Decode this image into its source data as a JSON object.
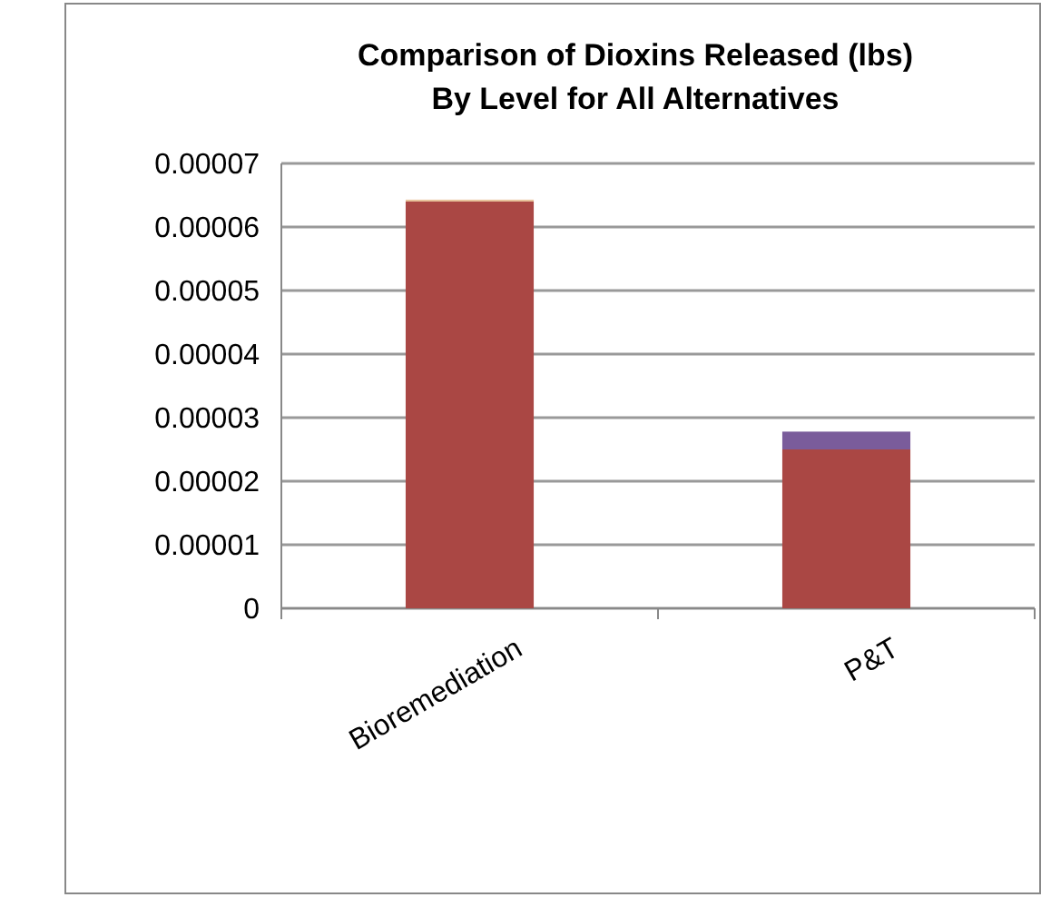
{
  "chart_data": {
    "type": "bar",
    "title": "Comparison of Dioxins Released (lbs)\nBy Level for All Alternatives",
    "categories": [
      "Bioremediation",
      "P&T"
    ],
    "stacked": true,
    "series": [
      {
        "color": "#aa4744",
        "values": [
          6.4e-05,
          2.5e-05
        ]
      },
      {
        "color": "#7a5c9b",
        "values": [
          0,
          2.8e-06
        ]
      },
      {
        "color": "#e8c39c",
        "values": [
          3e-07,
          0
        ]
      }
    ],
    "ylim": [
      0,
      7e-05
    ],
    "yticks": [
      {
        "value": 0,
        "label": "0"
      },
      {
        "value": 1e-05,
        "label": "0.00001"
      },
      {
        "value": 2e-05,
        "label": "0.00002"
      },
      {
        "value": 3e-05,
        "label": "0.00003"
      },
      {
        "value": 4e-05,
        "label": "0.00004"
      },
      {
        "value": 5e-05,
        "label": "0.00005"
      },
      {
        "value": 6e-05,
        "label": "0.00006"
      },
      {
        "value": 7e-05,
        "label": "0.00007"
      }
    ],
    "grid": "y"
  }
}
